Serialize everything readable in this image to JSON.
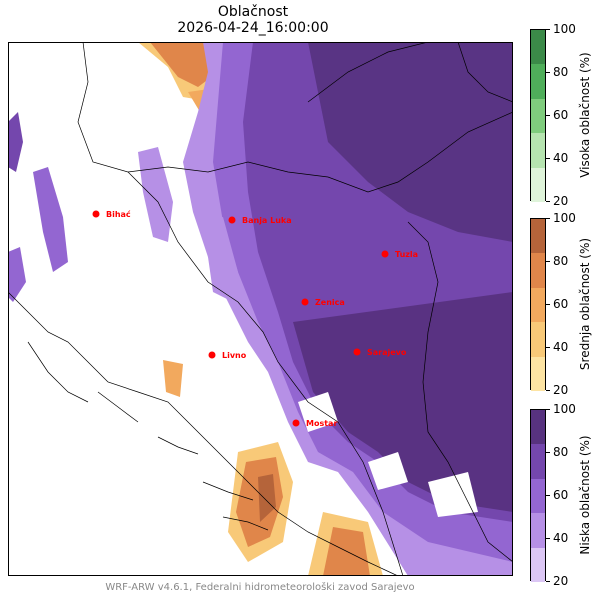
{
  "title": "Oblačnost",
  "timestamp": "2026-04-24_16:00:00",
  "footer": "WRF-ARW v4.6.1, Federalni hidrometeorološki zavod Sarajevo",
  "cities": [
    {
      "name": "Bihać"
    },
    {
      "name": "Banja Luka"
    },
    {
      "name": "Tuzla"
    },
    {
      "name": "Zenica"
    },
    {
      "name": "Livno"
    },
    {
      "name": "Sarajevo"
    },
    {
      "name": "Mostar"
    }
  ],
  "colorbars": [
    {
      "label": "Visoka oblačnost (%)",
      "ticks": [
        "100",
        "80",
        "60",
        "40",
        "20"
      ],
      "colors": [
        "#3b8a48",
        "#4fae5a",
        "#7fcc7d",
        "#b6e4b0",
        "#dff4da"
      ]
    },
    {
      "label": "Srednja oblačnost (%)",
      "ticks": [
        "100",
        "80",
        "60",
        "40",
        "20"
      ],
      "colors": [
        "#b5643a",
        "#e0864a",
        "#f2a95e",
        "#f8c978",
        "#fde4a3"
      ]
    },
    {
      "label": "Niska oblačnost (%)",
      "ticks": [
        "100",
        "80",
        "60",
        "40",
        "20"
      ],
      "colors": [
        "#57327f",
        "#7447ad",
        "#9366d1",
        "#b690e6",
        "#dcc7f5"
      ]
    }
  ],
  "marker_color": "#ff0000"
}
